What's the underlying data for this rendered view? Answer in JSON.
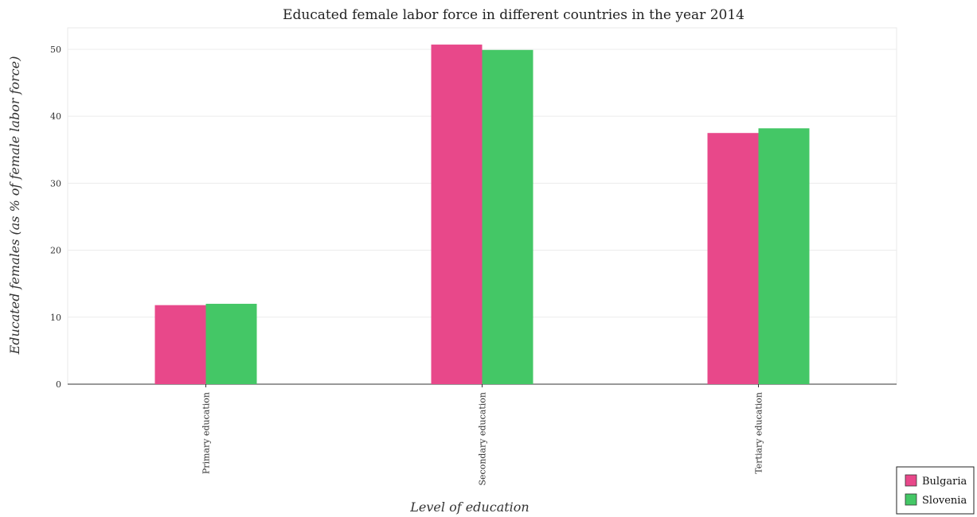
{
  "chart_data": {
    "type": "bar",
    "title": "Educated female labor force in different countries in the year 2014",
    "xlabel": "Level of education",
    "ylabel": "Educated females (as % of female labor force)",
    "categories": [
      "Primary education",
      "Secondary education",
      "Tertiary education"
    ],
    "series": [
      {
        "name": "Bulgaria",
        "color": "#e8488a",
        "values": [
          11.8,
          50.7,
          37.5
        ]
      },
      {
        "name": "Slovenia",
        "color": "#44c766",
        "values": [
          12.0,
          49.9,
          38.2
        ]
      }
    ],
    "yticks": [
      0,
      10,
      20,
      30,
      40,
      50
    ],
    "ylim": [
      0,
      53.2
    ],
    "grid": true,
    "legend_position": "bottom-right"
  }
}
